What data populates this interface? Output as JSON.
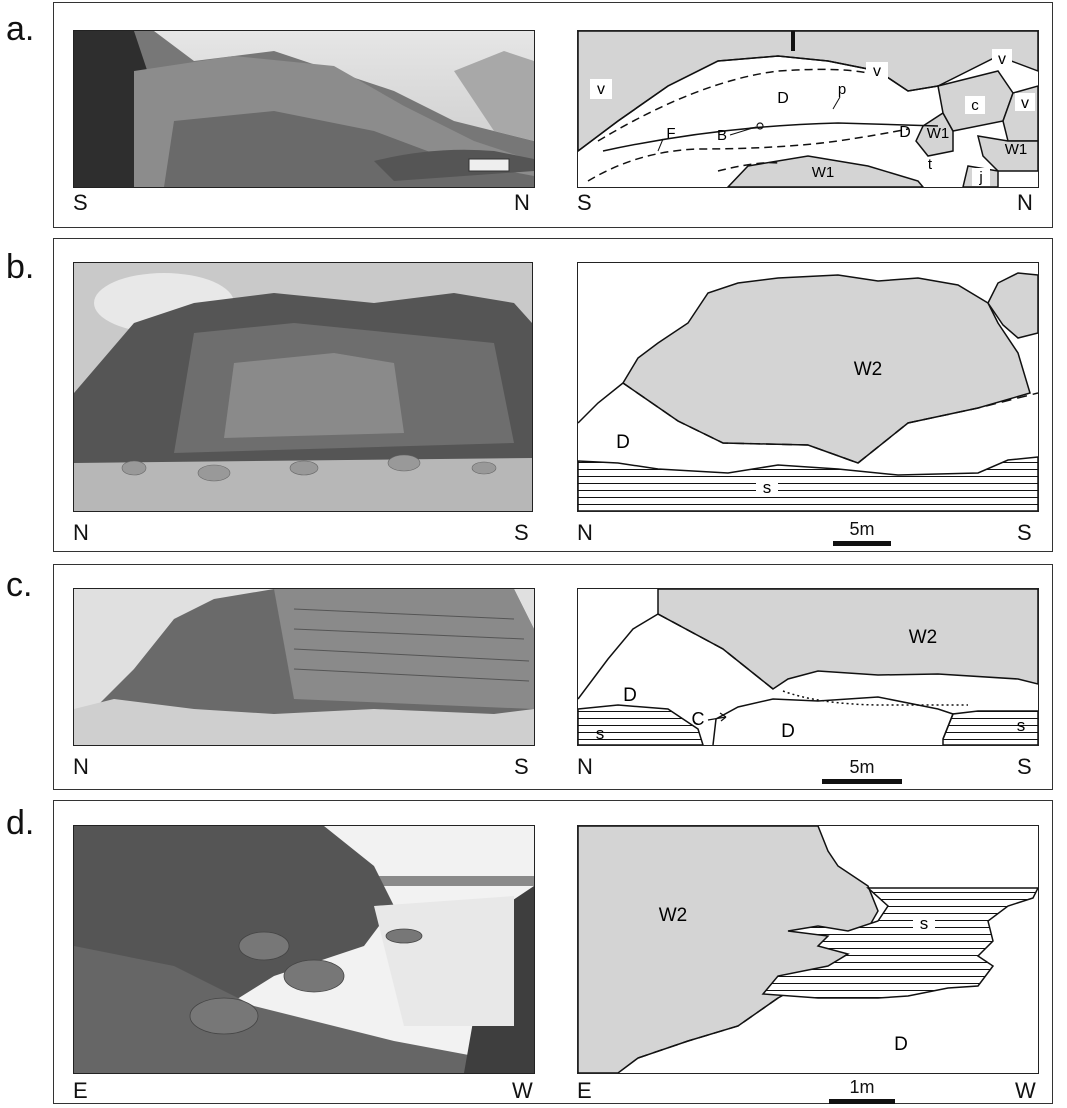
{
  "figure": {
    "panels": [
      {
        "label": "a.",
        "photo_dirs": {
          "left": "S",
          "right": "N"
        },
        "sketch_dirs": {
          "left": "S",
          "right": "N"
        },
        "units": {
          "v1": "v",
          "v2": "v",
          "v3": "v",
          "v4": "v",
          "D1": "D",
          "D2": "D",
          "p": "p",
          "F": "F",
          "B": "B",
          "c": "c",
          "W1a": "W1",
          "W1b": "W1",
          "W1c": "W1",
          "t": "t",
          "j": "j"
        }
      },
      {
        "label": "b.",
        "photo_dirs": {
          "left": "N",
          "right": "S"
        },
        "sketch_dirs": {
          "left": "N",
          "right": "S"
        },
        "units": {
          "W2": "W2",
          "D": "D",
          "s": "s"
        },
        "scale": "5m"
      },
      {
        "label": "c.",
        "photo_dirs": {
          "left": "N",
          "right": "S"
        },
        "sketch_dirs": {
          "left": "N",
          "right": "S"
        },
        "units": {
          "W2": "W2",
          "D1": "D",
          "D2": "D",
          "C": "C",
          "s1": "s",
          "s2": "s"
        },
        "scale": "5m"
      },
      {
        "label": "d.",
        "photo_dirs": {
          "left": "E",
          "right": "W"
        },
        "sketch_dirs": {
          "left": "E",
          "right": "W"
        },
        "units": {
          "W2": "W2",
          "s": "s",
          "D": "D"
        },
        "scale": "1m"
      }
    ]
  },
  "colors": {
    "unit_fill": "#d4d4d4",
    "line": "#111111"
  }
}
